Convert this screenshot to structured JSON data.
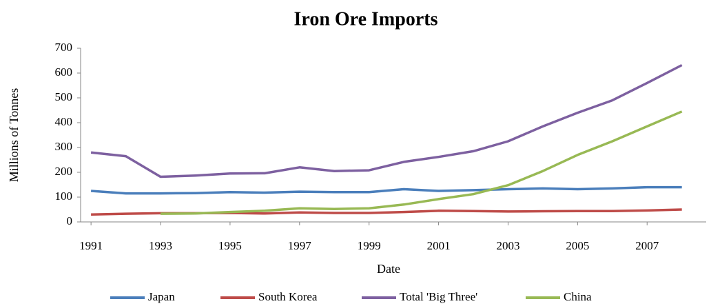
{
  "chart_data": {
    "type": "line",
    "title": "Iron Ore Imports",
    "x_label": "Date",
    "y_label": "Millions of Tonnes",
    "x": [
      1991,
      1992,
      1993,
      1994,
      1995,
      1996,
      1997,
      1998,
      1999,
      2000,
      2001,
      2002,
      2003,
      2004,
      2005,
      2006,
      2007,
      2008
    ],
    "series": [
      {
        "name": "Japan",
        "color": "#4a7ebb",
        "values": [
          125,
          115,
          115,
          116,
          120,
          118,
          122,
          120,
          120,
          132,
          125,
          128,
          132,
          135,
          132,
          135,
          140,
          140
        ]
      },
      {
        "name": "South Korea",
        "color": "#be4b48",
        "values": [
          30,
          33,
          35,
          35,
          36,
          34,
          38,
          36,
          36,
          40,
          45,
          44,
          42,
          43,
          44,
          44,
          46,
          50
        ]
      },
      {
        "name": "Total 'Big Three'",
        "color": "#7d60a0",
        "values": [
          280,
          265,
          182,
          187,
          195,
          196,
          220,
          205,
          208,
          242,
          262,
          285,
          325,
          385,
          440,
          490,
          560,
          632
        ]
      },
      {
        "name": "China",
        "color": "#98b954",
        "values": [
          null,
          null,
          33,
          34,
          40,
          45,
          55,
          52,
          55,
          70,
          92,
          112,
          148,
          205,
          270,
          325,
          385,
          445
        ]
      }
    ],
    "xlim": [
      1990.7,
      2008.7
    ],
    "xticks": [
      1991,
      1993,
      1995,
      1997,
      1999,
      2001,
      2003,
      2005,
      2007
    ],
    "ylim": [
      0,
      700
    ],
    "yticks": [
      0,
      100,
      200,
      300,
      400,
      500,
      600,
      700
    ],
    "grid": false,
    "legend": "bottom"
  }
}
